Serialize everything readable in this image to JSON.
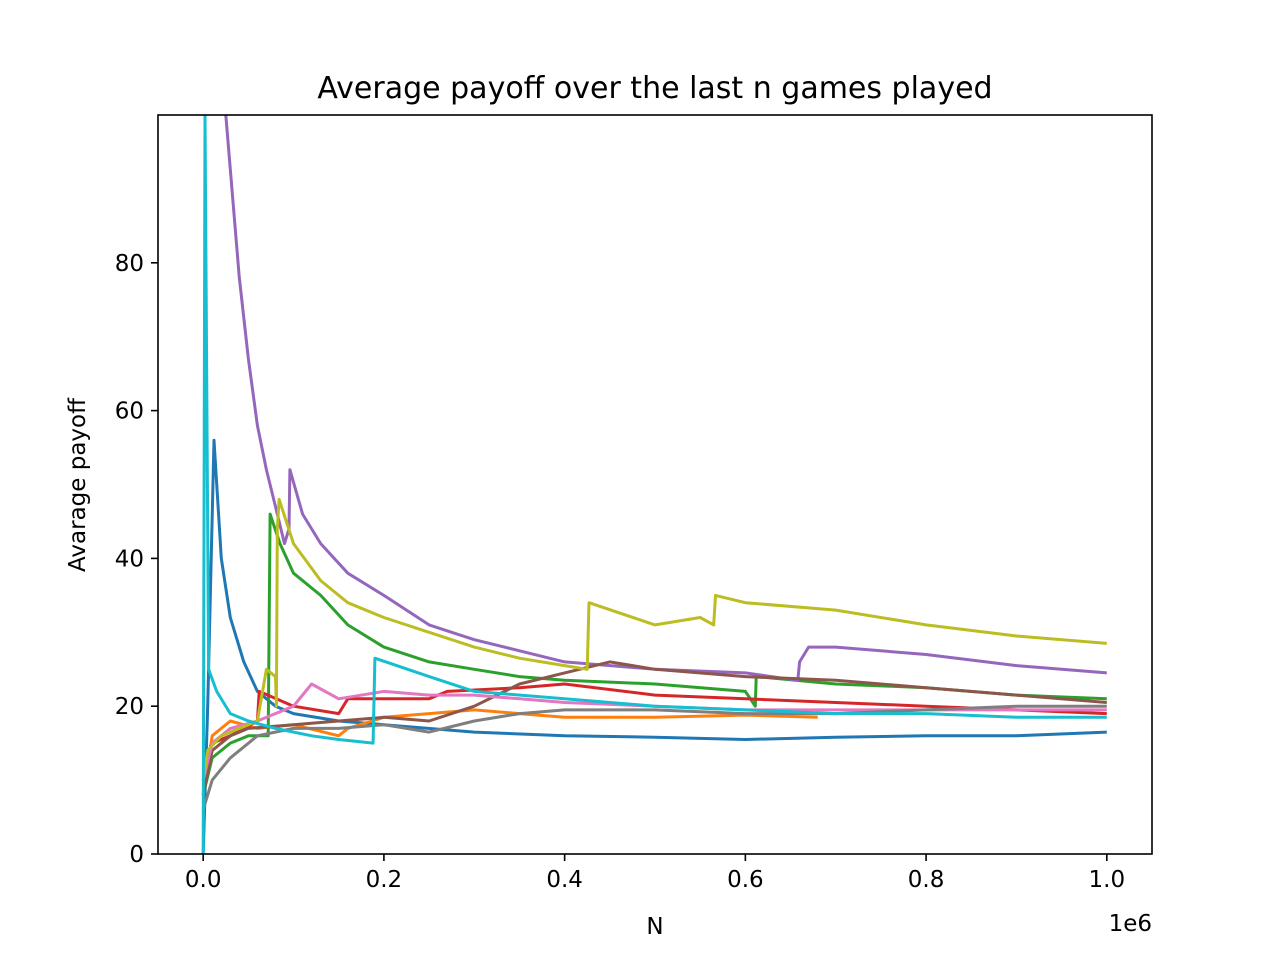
{
  "chart_data": {
    "type": "line",
    "title": "Average payoff over the last n games played",
    "xlabel": "N",
    "ylabel": "Avarage payoff",
    "x_offset_label": "1e6",
    "xlim": [
      -0.05,
      1.05
    ],
    "ylim": [
      0,
      100
    ],
    "x_ticks": [
      0.0,
      0.2,
      0.4,
      0.6,
      0.8,
      1.0
    ],
    "x_tick_labels": [
      "0.0",
      "0.2",
      "0.4",
      "0.6",
      "0.8",
      "1.0"
    ],
    "y_ticks": [
      0,
      20,
      40,
      60,
      80
    ],
    "y_tick_labels": [
      "0",
      "20",
      "40",
      "60",
      "80"
    ],
    "grid": false,
    "legend": "none",
    "series": [
      {
        "color": "#1f77b4",
        "points": [
          [
            0,
            0
          ],
          [
            0.005,
            20
          ],
          [
            0.012,
            56
          ],
          [
            0.02,
            40
          ],
          [
            0.03,
            32
          ],
          [
            0.045,
            26
          ],
          [
            0.06,
            22
          ],
          [
            0.08,
            20
          ],
          [
            0.1,
            19
          ],
          [
            0.15,
            18
          ],
          [
            0.2,
            17.5
          ],
          [
            0.3,
            16.5
          ],
          [
            0.4,
            16
          ],
          [
            0.5,
            15.8
          ],
          [
            0.6,
            15.5
          ],
          [
            0.7,
            15.8
          ],
          [
            0.8,
            16
          ],
          [
            0.9,
            16
          ],
          [
            1.0,
            16.5
          ]
        ]
      },
      {
        "color": "#ff7f0e",
        "points": [
          [
            0,
            8
          ],
          [
            0.01,
            16
          ],
          [
            0.03,
            18
          ],
          [
            0.06,
            17
          ],
          [
            0.1,
            17.5
          ],
          [
            0.15,
            16
          ],
          [
            0.16,
            17
          ],
          [
            0.2,
            18.5
          ],
          [
            0.25,
            19
          ],
          [
            0.3,
            19.5
          ],
          [
            0.35,
            19
          ],
          [
            0.4,
            18.5
          ],
          [
            0.45,
            18.5
          ],
          [
            0.5,
            18.5
          ],
          [
            0.6,
            18.8
          ],
          [
            0.68,
            18.5
          ]
        ]
      },
      {
        "color": "#2ca02c",
        "points": [
          [
            0,
            8
          ],
          [
            0.01,
            13
          ],
          [
            0.03,
            15
          ],
          [
            0.05,
            16
          ],
          [
            0.072,
            16
          ],
          [
            0.074,
            46
          ],
          [
            0.085,
            42
          ],
          [
            0.1,
            38
          ],
          [
            0.13,
            35
          ],
          [
            0.16,
            31
          ],
          [
            0.2,
            28
          ],
          [
            0.25,
            26
          ],
          [
            0.3,
            25
          ],
          [
            0.35,
            24
          ],
          [
            0.4,
            23.5
          ],
          [
            0.5,
            23
          ],
          [
            0.6,
            22
          ],
          [
            0.611,
            20
          ],
          [
            0.612,
            24
          ],
          [
            0.7,
            23
          ],
          [
            0.8,
            22.5
          ],
          [
            0.9,
            21.5
          ],
          [
            1.0,
            21
          ]
        ]
      },
      {
        "color": "#d62728",
        "points": [
          [
            0,
            12
          ],
          [
            0.01,
            15
          ],
          [
            0.03,
            16
          ],
          [
            0.06,
            18
          ],
          [
            0.062,
            22
          ],
          [
            0.1,
            20
          ],
          [
            0.15,
            19
          ],
          [
            0.16,
            21
          ],
          [
            0.2,
            21
          ],
          [
            0.25,
            21
          ],
          [
            0.27,
            22
          ],
          [
            0.35,
            22.5
          ],
          [
            0.4,
            23
          ],
          [
            0.5,
            21.5
          ],
          [
            0.6,
            21
          ],
          [
            0.7,
            20.5
          ],
          [
            0.8,
            20
          ],
          [
            0.9,
            19.5
          ],
          [
            1.0,
            19
          ]
        ]
      },
      {
        "color": "#9467bd",
        "points": [
          [
            0.025,
            100
          ],
          [
            0.04,
            78
          ],
          [
            0.05,
            67
          ],
          [
            0.06,
            58
          ],
          [
            0.07,
            52
          ],
          [
            0.08,
            47
          ],
          [
            0.09,
            42
          ],
          [
            0.095,
            44
          ],
          [
            0.096,
            52
          ],
          [
            0.11,
            46
          ],
          [
            0.13,
            42
          ],
          [
            0.16,
            38
          ],
          [
            0.2,
            35
          ],
          [
            0.25,
            31
          ],
          [
            0.3,
            29
          ],
          [
            0.35,
            27.5
          ],
          [
            0.4,
            26
          ],
          [
            0.5,
            25
          ],
          [
            0.6,
            24.5
          ],
          [
            0.658,
            23.5
          ],
          [
            0.66,
            26
          ],
          [
            0.67,
            28
          ],
          [
            0.7,
            28
          ],
          [
            0.8,
            27
          ],
          [
            0.9,
            25.5
          ],
          [
            1.0,
            24.5
          ]
        ]
      },
      {
        "color": "#8c564b",
        "points": [
          [
            0,
            8
          ],
          [
            0.01,
            14
          ],
          [
            0.03,
            16
          ],
          [
            0.05,
            17
          ],
          [
            0.1,
            17.5
          ],
          [
            0.15,
            18
          ],
          [
            0.2,
            18.5
          ],
          [
            0.25,
            18
          ],
          [
            0.3,
            20
          ],
          [
            0.35,
            23
          ],
          [
            0.4,
            24.5
          ],
          [
            0.45,
            26
          ],
          [
            0.5,
            25
          ],
          [
            0.6,
            24
          ],
          [
            0.7,
            23.5
          ],
          [
            0.8,
            22.5
          ],
          [
            0.9,
            21.5
          ],
          [
            1.0,
            20.5
          ]
        ]
      },
      {
        "color": "#e377c2",
        "points": [
          [
            0,
            10
          ],
          [
            0.01,
            15
          ],
          [
            0.03,
            17
          ],
          [
            0.06,
            18
          ],
          [
            0.1,
            20
          ],
          [
            0.12,
            23
          ],
          [
            0.15,
            21
          ],
          [
            0.2,
            22
          ],
          [
            0.25,
            21.5
          ],
          [
            0.3,
            21.5
          ],
          [
            0.35,
            21
          ],
          [
            0.4,
            20.5
          ],
          [
            0.5,
            20
          ],
          [
            0.6,
            19.5
          ],
          [
            0.7,
            19.5
          ],
          [
            0.8,
            19.5
          ],
          [
            0.9,
            19.5
          ],
          [
            1.0,
            19.5
          ]
        ]
      },
      {
        "color": "#7f7f7f",
        "points": [
          [
            0,
            6
          ],
          [
            0.01,
            10
          ],
          [
            0.03,
            13
          ],
          [
            0.06,
            16
          ],
          [
            0.1,
            17
          ],
          [
            0.15,
            17
          ],
          [
            0.2,
            17.5
          ],
          [
            0.25,
            16.5
          ],
          [
            0.3,
            18
          ],
          [
            0.35,
            19
          ],
          [
            0.4,
            19.5
          ],
          [
            0.5,
            19.5
          ],
          [
            0.6,
            19
          ],
          [
            0.7,
            19
          ],
          [
            0.8,
            19.5
          ],
          [
            0.9,
            20
          ],
          [
            1.0,
            20
          ]
        ]
      },
      {
        "color": "#bcbd22",
        "points": [
          [
            0,
            10
          ],
          [
            0.005,
            14
          ],
          [
            0.02,
            16
          ],
          [
            0.06,
            18
          ],
          [
            0.07,
            25
          ],
          [
            0.08,
            24
          ],
          [
            0.081,
            20
          ],
          [
            0.082,
            44
          ],
          [
            0.084,
            48
          ],
          [
            0.1,
            42
          ],
          [
            0.13,
            37
          ],
          [
            0.16,
            34
          ],
          [
            0.2,
            32
          ],
          [
            0.25,
            30
          ],
          [
            0.3,
            28
          ],
          [
            0.35,
            26.5
          ],
          [
            0.4,
            25.5
          ],
          [
            0.425,
            25
          ],
          [
            0.427,
            34
          ],
          [
            0.5,
            31
          ],
          [
            0.55,
            32
          ],
          [
            0.565,
            31
          ],
          [
            0.567,
            35
          ],
          [
            0.6,
            34
          ],
          [
            0.7,
            33
          ],
          [
            0.8,
            31
          ],
          [
            0.9,
            29.5
          ],
          [
            1.0,
            28.5
          ]
        ]
      },
      {
        "color": "#17becf",
        "points": [
          [
            0,
            0
          ],
          [
            0.002,
            100
          ],
          [
            0.006,
            25
          ],
          [
            0.015,
            22
          ],
          [
            0.03,
            19
          ],
          [
            0.05,
            18
          ],
          [
            0.08,
            17
          ],
          [
            0.12,
            16
          ],
          [
            0.15,
            15.5
          ],
          [
            0.188,
            15
          ],
          [
            0.19,
            26.5
          ],
          [
            0.25,
            24
          ],
          [
            0.3,
            22
          ],
          [
            0.4,
            21
          ],
          [
            0.5,
            20
          ],
          [
            0.6,
            19.5
          ],
          [
            0.7,
            19
          ],
          [
            0.8,
            19
          ],
          [
            0.9,
            18.5
          ],
          [
            1.0,
            18.5
          ]
        ]
      }
    ]
  }
}
